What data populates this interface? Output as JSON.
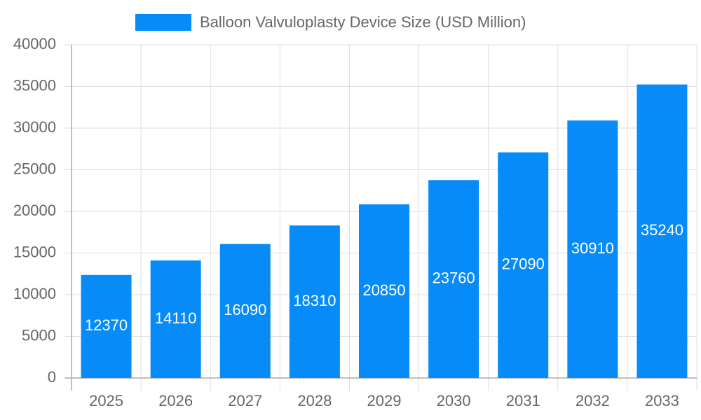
{
  "chart_data": {
    "type": "bar",
    "categories": [
      "2025",
      "2026",
      "2027",
      "2028",
      "2029",
      "2030",
      "2031",
      "2032",
      "2033"
    ],
    "series": [
      {
        "name": "Balloon Valvuloplasty Device Size (USD Million)",
        "color": "#068bf9",
        "values": [
          12370,
          14110,
          16090,
          18310,
          20850,
          23760,
          27090,
          30910,
          35240
        ]
      }
    ],
    "ylim": [
      0,
      40000
    ],
    "yticks": [
      0,
      5000,
      10000,
      15000,
      20000,
      25000,
      30000,
      35000,
      40000
    ],
    "grid": true,
    "legend": "top"
  }
}
